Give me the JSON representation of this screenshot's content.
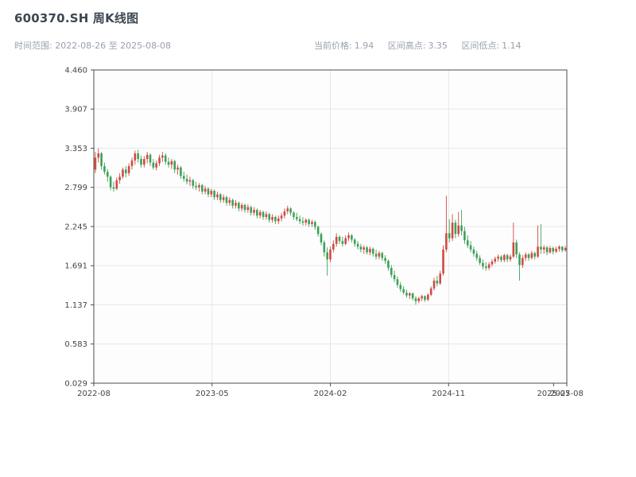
{
  "header": {
    "title": "600370.SH 周K线图",
    "subtitle_left": "时间范围: 2022-08-26 至 2025-08-08",
    "stats": [
      {
        "label": "当前价格:",
        "value": "1.94"
      },
      {
        "label": "区间高点:",
        "value": "3.35"
      },
      {
        "label": "区间低点:",
        "value": "1.14"
      }
    ]
  },
  "chart_data": {
    "type": "candlestick",
    "title": "600370.SH 周K线图",
    "current_price": 1.94,
    "range_high": 3.35,
    "range_low": 1.14,
    "ylim": [
      0.029,
      4.46
    ],
    "y_ticks": [
      "4.460",
      "3.907",
      "3.353",
      "2.799",
      "2.245",
      "1.691",
      "1.137",
      "0.583",
      "0.029"
    ],
    "x_ticks": [
      {
        "label": "2022-08",
        "f": 0,
        "grid": true
      },
      {
        "label": "2023-05",
        "f": 0.25,
        "grid": true
      },
      {
        "label": "2024-02",
        "f": 0.5,
        "grid": true
      },
      {
        "label": "2024-11",
        "f": 0.75,
        "grid": true
      },
      {
        "label": "2025-07",
        "f": 0.972,
        "grid": false
      },
      {
        "label": "2025-08",
        "f": 1,
        "grid": true
      }
    ],
    "colors": {
      "up": "#cf4b41",
      "down": "#3da156",
      "grid": "#e7e7ea",
      "spine": "#3c3c3c",
      "plot_bg": "#fdfdfe"
    },
    "candles": [
      [
        3.05,
        3.3,
        3.0,
        3.22
      ],
      [
        3.22,
        3.35,
        3.15,
        3.28
      ],
      [
        3.28,
        3.3,
        3.05,
        3.1
      ],
      [
        3.1,
        3.15,
        2.98,
        3.02
      ],
      [
        3.02,
        3.06,
        2.88,
        2.95
      ],
      [
        2.95,
        2.97,
        2.76,
        2.8
      ],
      [
        2.8,
        2.88,
        2.74,
        2.78
      ],
      [
        2.78,
        2.94,
        2.76,
        2.9
      ],
      [
        2.9,
        3.0,
        2.85,
        2.95
      ],
      [
        2.95,
        3.08,
        2.92,
        3.05
      ],
      [
        3.05,
        3.1,
        2.94,
        3.0
      ],
      [
        3.0,
        3.14,
        2.96,
        3.1
      ],
      [
        3.1,
        3.22,
        3.05,
        3.18
      ],
      [
        3.18,
        3.32,
        3.12,
        3.28
      ],
      [
        3.28,
        3.33,
        3.15,
        3.2
      ],
      [
        3.2,
        3.25,
        3.08,
        3.12
      ],
      [
        3.12,
        3.24,
        3.08,
        3.2
      ],
      [
        3.2,
        3.3,
        3.14,
        3.26
      ],
      [
        3.26,
        3.28,
        3.1,
        3.15
      ],
      [
        3.15,
        3.2,
        3.05,
        3.08
      ],
      [
        3.08,
        3.18,
        3.04,
        3.14
      ],
      [
        3.14,
        3.26,
        3.1,
        3.22
      ],
      [
        3.22,
        3.3,
        3.16,
        3.25
      ],
      [
        3.25,
        3.28,
        3.12,
        3.16
      ],
      [
        3.16,
        3.22,
        3.08,
        3.12
      ],
      [
        3.12,
        3.2,
        3.06,
        3.17
      ],
      [
        3.17,
        3.19,
        3.0,
        3.05
      ],
      [
        3.05,
        3.12,
        2.98,
        3.08
      ],
      [
        3.08,
        3.1,
        2.92,
        2.96
      ],
      [
        2.96,
        3.02,
        2.88,
        2.92
      ],
      [
        2.92,
        2.98,
        2.84,
        2.88
      ],
      [
        2.88,
        2.95,
        2.82,
        2.9
      ],
      [
        2.9,
        2.92,
        2.78,
        2.82
      ],
      [
        2.82,
        2.88,
        2.76,
        2.8
      ],
      [
        2.8,
        2.86,
        2.74,
        2.83
      ],
      [
        2.83,
        2.85,
        2.7,
        2.74
      ],
      [
        2.74,
        2.82,
        2.7,
        2.78
      ],
      [
        2.78,
        2.8,
        2.66,
        2.7
      ],
      [
        2.7,
        2.78,
        2.66,
        2.75
      ],
      [
        2.75,
        2.77,
        2.62,
        2.66
      ],
      [
        2.66,
        2.74,
        2.62,
        2.7
      ],
      [
        2.7,
        2.72,
        2.58,
        2.62
      ],
      [
        2.62,
        2.7,
        2.58,
        2.66
      ],
      [
        2.66,
        2.68,
        2.54,
        2.58
      ],
      [
        2.58,
        2.66,
        2.54,
        2.62
      ],
      [
        2.62,
        2.64,
        2.5,
        2.54
      ],
      [
        2.54,
        2.62,
        2.5,
        2.58
      ],
      [
        2.58,
        2.6,
        2.46,
        2.5
      ],
      [
        2.5,
        2.58,
        2.46,
        2.55
      ],
      [
        2.55,
        2.57,
        2.44,
        2.48
      ],
      [
        2.48,
        2.56,
        2.44,
        2.52
      ],
      [
        2.52,
        2.54,
        2.4,
        2.44
      ],
      [
        2.44,
        2.52,
        2.4,
        2.48
      ],
      [
        2.48,
        2.5,
        2.36,
        2.4
      ],
      [
        2.4,
        2.48,
        2.36,
        2.45
      ],
      [
        2.45,
        2.47,
        2.34,
        2.38
      ],
      [
        2.38,
        2.46,
        2.34,
        2.42
      ],
      [
        2.42,
        2.44,
        2.3,
        2.34
      ],
      [
        2.34,
        2.42,
        2.3,
        2.38
      ],
      [
        2.38,
        2.4,
        2.28,
        2.32
      ],
      [
        2.32,
        2.4,
        2.28,
        2.36
      ],
      [
        2.36,
        2.44,
        2.32,
        2.4
      ],
      [
        2.4,
        2.5,
        2.36,
        2.46
      ],
      [
        2.46,
        2.54,
        2.42,
        2.5
      ],
      [
        2.5,
        2.52,
        2.4,
        2.44
      ],
      [
        2.44,
        2.46,
        2.34,
        2.38
      ],
      [
        2.38,
        2.44,
        2.32,
        2.35
      ],
      [
        2.35,
        2.4,
        2.28,
        2.32
      ],
      [
        2.32,
        2.38,
        2.26,
        2.3
      ],
      [
        2.3,
        2.36,
        2.26,
        2.34
      ],
      [
        2.34,
        2.36,
        2.24,
        2.28
      ],
      [
        2.28,
        2.34,
        2.24,
        2.31
      ],
      [
        2.31,
        2.33,
        2.2,
        2.24
      ],
      [
        2.24,
        2.26,
        2.1,
        2.14
      ],
      [
        2.14,
        2.16,
        1.98,
        2.02
      ],
      [
        2.02,
        2.05,
        1.82,
        1.88
      ],
      [
        1.88,
        1.95,
        1.55,
        1.78
      ],
      [
        1.78,
        1.96,
        1.74,
        1.92
      ],
      [
        1.92,
        2.05,
        1.88,
        2.0
      ],
      [
        2.0,
        2.15,
        1.96,
        2.1
      ],
      [
        2.1,
        2.12,
        2.0,
        2.04
      ],
      [
        2.04,
        2.1,
        1.96,
        2.0
      ],
      [
        2.0,
        2.12,
        1.98,
        2.08
      ],
      [
        2.08,
        2.16,
        2.04,
        2.12
      ],
      [
        2.12,
        2.14,
        2.02,
        2.06
      ],
      [
        2.06,
        2.08,
        1.96,
        2.0
      ],
      [
        2.0,
        2.04,
        1.92,
        1.96
      ],
      [
        1.96,
        2.0,
        1.88,
        1.92
      ],
      [
        1.92,
        1.98,
        1.86,
        1.95
      ],
      [
        1.95,
        1.97,
        1.85,
        1.88
      ],
      [
        1.88,
        1.96,
        1.84,
        1.93
      ],
      [
        1.93,
        1.95,
        1.82,
        1.86
      ],
      [
        1.86,
        1.92,
        1.78,
        1.82
      ],
      [
        1.82,
        1.9,
        1.78,
        1.87
      ],
      [
        1.87,
        1.89,
        1.76,
        1.8
      ],
      [
        1.8,
        1.84,
        1.72,
        1.76
      ],
      [
        1.76,
        1.78,
        1.62,
        1.66
      ],
      [
        1.66,
        1.7,
        1.52,
        1.56
      ],
      [
        1.56,
        1.62,
        1.46,
        1.5
      ],
      [
        1.5,
        1.54,
        1.38,
        1.42
      ],
      [
        1.42,
        1.46,
        1.32,
        1.36
      ],
      [
        1.36,
        1.4,
        1.28,
        1.31
      ],
      [
        1.31,
        1.35,
        1.24,
        1.27
      ],
      [
        1.27,
        1.32,
        1.22,
        1.3
      ],
      [
        1.3,
        1.31,
        1.2,
        1.23
      ],
      [
        1.23,
        1.26,
        1.14,
        1.19
      ],
      [
        1.19,
        1.25,
        1.16,
        1.23
      ],
      [
        1.23,
        1.28,
        1.19,
        1.26
      ],
      [
        1.26,
        1.27,
        1.18,
        1.21
      ],
      [
        1.21,
        1.3,
        1.19,
        1.28
      ],
      [
        1.28,
        1.4,
        1.26,
        1.37
      ],
      [
        1.37,
        1.52,
        1.34,
        1.48
      ],
      [
        1.48,
        1.55,
        1.4,
        1.44
      ],
      [
        1.44,
        1.62,
        1.42,
        1.58
      ],
      [
        1.58,
        1.98,
        1.55,
        1.92
      ],
      [
        1.92,
        2.68,
        1.88,
        2.15
      ],
      [
        2.15,
        2.35,
        2.02,
        2.08
      ],
      [
        2.08,
        2.42,
        2.04,
        2.3
      ],
      [
        2.3,
        2.34,
        2.08,
        2.14
      ],
      [
        2.14,
        2.45,
        2.1,
        2.26
      ],
      [
        2.26,
        2.48,
        2.12,
        2.18
      ],
      [
        2.18,
        2.24,
        2.0,
        2.05
      ],
      [
        2.05,
        2.12,
        1.94,
        1.98
      ],
      [
        1.98,
        2.04,
        1.88,
        1.92
      ],
      [
        1.92,
        1.96,
        1.82,
        1.86
      ],
      [
        1.86,
        1.9,
        1.76,
        1.8
      ],
      [
        1.8,
        1.84,
        1.7,
        1.73
      ],
      [
        1.73,
        1.78,
        1.64,
        1.68
      ],
      [
        1.68,
        1.74,
        1.62,
        1.66
      ],
      [
        1.66,
        1.74,
        1.63,
        1.71
      ],
      [
        1.71,
        1.78,
        1.68,
        1.75
      ],
      [
        1.75,
        1.82,
        1.72,
        1.79
      ],
      [
        1.79,
        1.85,
        1.75,
        1.82
      ],
      [
        1.82,
        1.84,
        1.74,
        1.77
      ],
      [
        1.77,
        1.86,
        1.74,
        1.84
      ],
      [
        1.84,
        1.86,
        1.74,
        1.78
      ],
      [
        1.78,
        1.85,
        1.75,
        1.82
      ],
      [
        1.82,
        2.3,
        1.8,
        2.02
      ],
      [
        2.02,
        2.06,
        1.8,
        1.85
      ],
      [
        1.85,
        1.88,
        1.48,
        1.7
      ],
      [
        1.7,
        1.84,
        1.66,
        1.8
      ],
      [
        1.8,
        1.88,
        1.76,
        1.85
      ],
      [
        1.85,
        1.87,
        1.76,
        1.8
      ],
      [
        1.8,
        1.9,
        1.78,
        1.87
      ],
      [
        1.87,
        1.89,
        1.78,
        1.82
      ],
      [
        1.82,
        2.26,
        1.8,
        1.96
      ],
      [
        1.96,
        2.28,
        1.86,
        1.92
      ],
      [
        1.92,
        1.98,
        1.86,
        1.95
      ],
      [
        1.95,
        1.97,
        1.84,
        1.88
      ],
      [
        1.88,
        1.97,
        1.86,
        1.94
      ],
      [
        1.94,
        1.96,
        1.85,
        1.89
      ],
      [
        1.89,
        1.96,
        1.87,
        1.93
      ],
      [
        1.93,
        1.98,
        1.89,
        1.96
      ],
      [
        1.96,
        1.97,
        1.88,
        1.91
      ],
      [
        1.91,
        1.97,
        1.89,
        1.94
      ]
    ]
  }
}
